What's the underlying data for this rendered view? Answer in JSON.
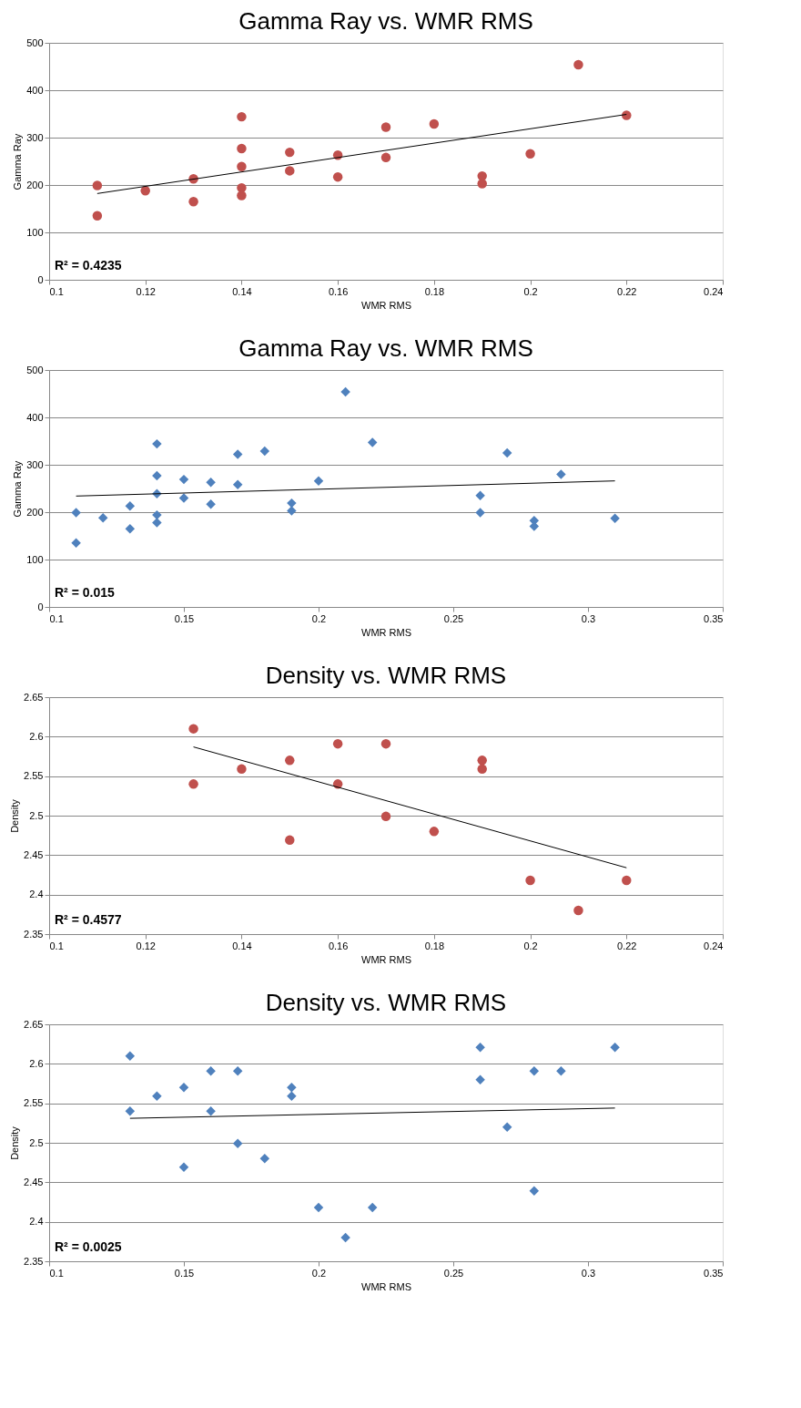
{
  "chart_data": [
    {
      "type": "scatter",
      "title": "Gamma Ray vs. WMR RMS",
      "xlabel": "WMR RMS",
      "ylabel": "Gamma Ray",
      "xlim": [
        0.1,
        0.24
      ],
      "xticks": [
        0.1,
        0.12,
        0.14,
        0.16,
        0.18,
        0.2,
        0.22,
        0.24
      ],
      "ylim": [
        0,
        500
      ],
      "yticks": [
        0,
        100,
        200,
        300,
        400,
        500
      ],
      "grid": "y",
      "annotations": [
        "R² = 0.4235"
      ],
      "series": [
        {
          "marker": "circle",
          "color": "#c0504d",
          "x": [
            0.11,
            0.11,
            0.12,
            0.13,
            0.13,
            0.14,
            0.14,
            0.14,
            0.14,
            0.14,
            0.15,
            0.15,
            0.16,
            0.16,
            0.17,
            0.17,
            0.18,
            0.19,
            0.19,
            0.2,
            0.21,
            0.22
          ],
          "values": [
            199,
            135,
            188,
            213,
            165,
            344,
            277,
            239,
            194,
            178,
            269,
            230,
            263,
            217,
            322,
            258,
            329,
            219,
            203,
            266,
            454,
            347
          ]
        },
        {
          "type": "line",
          "marker": "none",
          "color": "#000000",
          "x": [
            0.11,
            0.22
          ],
          "values": [
            182,
            349
          ]
        }
      ]
    },
    {
      "type": "scatter",
      "title": "Gamma Ray vs. WMR RMS",
      "xlabel": "WMR RMS",
      "ylabel": "Gamma Ray",
      "xlim": [
        0.1,
        0.35
      ],
      "xticks": [
        0.1,
        0.15,
        0.2,
        0.25,
        0.3,
        0.35
      ],
      "ylim": [
        0,
        500
      ],
      "yticks": [
        0,
        100,
        200,
        300,
        400,
        500
      ],
      "grid": "y",
      "annotations": [
        "R² = 0.015"
      ],
      "series": [
        {
          "marker": "diamond",
          "color": "#4f81bd",
          "x": [
            0.11,
            0.11,
            0.12,
            0.13,
            0.13,
            0.14,
            0.14,
            0.14,
            0.14,
            0.14,
            0.15,
            0.15,
            0.16,
            0.16,
            0.17,
            0.17,
            0.18,
            0.19,
            0.19,
            0.2,
            0.21,
            0.22,
            0.26,
            0.26,
            0.27,
            0.28,
            0.28,
            0.29,
            0.31
          ],
          "values": [
            199,
            135,
            188,
            213,
            165,
            344,
            277,
            239,
            194,
            178,
            269,
            230,
            263,
            217,
            322,
            258,
            329,
            219,
            203,
            266,
            454,
            347,
            235,
            199,
            325,
            182,
            170,
            280,
            187
          ]
        },
        {
          "type": "line",
          "marker": "none",
          "color": "#000000",
          "x": [
            0.11,
            0.31
          ],
          "values": [
            234,
            266
          ]
        }
      ]
    },
    {
      "type": "scatter",
      "title": "Density vs. WMR RMS",
      "xlabel": "WMR RMS",
      "ylabel": "Density",
      "xlim": [
        0.1,
        0.24
      ],
      "xticks": [
        0.1,
        0.12,
        0.14,
        0.16,
        0.18,
        0.2,
        0.22,
        0.24
      ],
      "ylim": [
        2.35,
        2.65
      ],
      "yticks": [
        2.35,
        2.4,
        2.45,
        2.5,
        2.55,
        2.6,
        2.65
      ],
      "grid": "y",
      "annotations": [
        "R² = 0.4577"
      ],
      "series": [
        {
          "marker": "circle",
          "color": "#c0504d",
          "x": [
            0.13,
            0.13,
            0.14,
            0.15,
            0.15,
            0.16,
            0.16,
            0.17,
            0.17,
            0.18,
            0.19,
            0.19,
            0.2,
            0.21,
            0.22
          ],
          "values": [
            2.61,
            2.54,
            2.559,
            2.57,
            2.469,
            2.591,
            2.54,
            2.591,
            2.499,
            2.48,
            2.57,
            2.559,
            2.418,
            2.38,
            2.418
          ]
        },
        {
          "type": "line",
          "marker": "none",
          "color": "#000000",
          "x": [
            0.13,
            0.22
          ],
          "values": [
            2.587,
            2.434
          ]
        }
      ]
    },
    {
      "type": "scatter",
      "title": "Density vs. WMR RMS",
      "xlabel": "WMR RMS",
      "ylabel": "Density",
      "xlim": [
        0.1,
        0.35
      ],
      "xticks": [
        0.1,
        0.15,
        0.2,
        0.25,
        0.3,
        0.35
      ],
      "ylim": [
        2.35,
        2.65
      ],
      "yticks": [
        2.35,
        2.4,
        2.45,
        2.5,
        2.55,
        2.6,
        2.65
      ],
      "grid": "y",
      "annotations": [
        "R² = 0.0025"
      ],
      "series": [
        {
          "marker": "diamond",
          "color": "#4f81bd",
          "x": [
            0.13,
            0.13,
            0.14,
            0.15,
            0.15,
            0.16,
            0.16,
            0.17,
            0.17,
            0.18,
            0.19,
            0.19,
            0.2,
            0.21,
            0.22,
            0.26,
            0.26,
            0.27,
            0.28,
            0.28,
            0.29,
            0.31
          ],
          "values": [
            2.61,
            2.54,
            2.559,
            2.57,
            2.469,
            2.591,
            2.54,
            2.591,
            2.499,
            2.48,
            2.57,
            2.559,
            2.418,
            2.38,
            2.418,
            2.621,
            2.58,
            2.52,
            2.591,
            2.439,
            2.591,
            2.621
          ]
        },
        {
          "type": "line",
          "marker": "none",
          "color": "#000000",
          "x": [
            0.13,
            0.31
          ],
          "values": [
            2.531,
            2.544
          ]
        }
      ]
    }
  ]
}
